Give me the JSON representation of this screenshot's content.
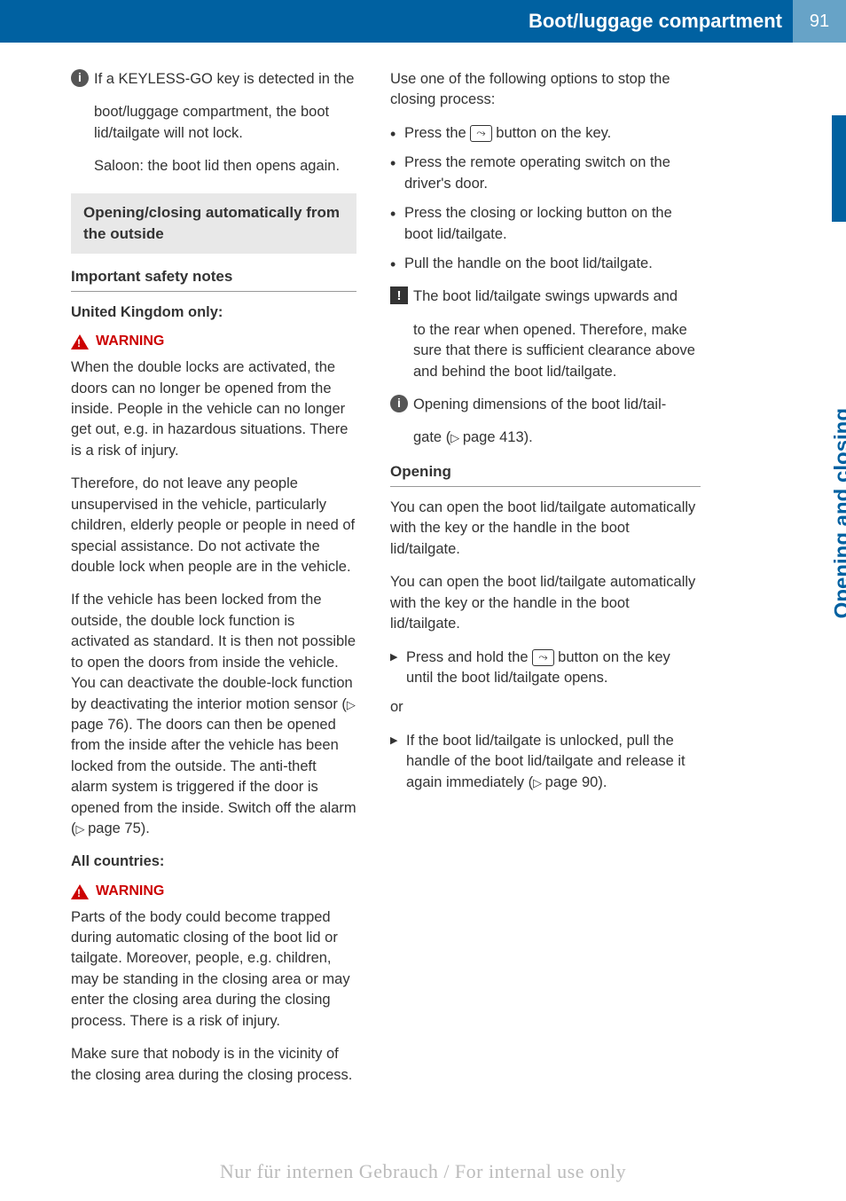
{
  "header": {
    "title": "Boot/luggage compartment",
    "page": "91"
  },
  "side_tab": "Opening and closing",
  "left": {
    "info1_l1": "If a KEYLESS-GO key is detected in the",
    "info1_rest": "boot/luggage compartment, the boot lid/tailgate will not lock.",
    "info1_p2": "Saloon: the boot lid then opens again.",
    "sec_title": "Opening/closing automatically from the outside",
    "h3_safety": "Important safety notes",
    "h4_uk": "United Kingdom only:",
    "warn_label": "WARNING",
    "warn1_p1": "When the double locks are activated, the doors can no longer be opened from the inside. People in the vehicle can no longer get out, e.g. in hazardous situations. There is a risk of injury.",
    "warn1_p2": "Therefore, do not leave any people unsupervised in the vehicle, particularly children, elderly people or people in need of special assistance. Do not activate the double lock when people are in the vehicle.",
    "double_lock_p": "If the vehicle has been locked from the outside, the double lock function is activated as standard. It is then not possible to open the doors from inside the vehicle. You can deactivate the double-lock function by deactivating the interior motion sensor (",
    "ref76": "page 76",
    "double_lock_p2": "). The doors can then be opened from the inside after the vehicle has been locked from the outside. The anti-theft alarm system is triggered if the door is opened from the inside. Switch off the alarm (",
    "ref75": "page 75",
    "double_lock_p3": ").",
    "h4_all": "All countries:",
    "warn2_p1": "Parts of the body could become trapped during automatic closing of the boot lid or tailgate. Moreover, people, e.g. children, may be standing in the closing area or may enter the closing area during the closing process. There is a risk of injury.",
    "warn2_p2": "Make sure that nobody is in the vicinity of the closing area during the closing process."
  },
  "right": {
    "stop_intro": "Use one of the following options to stop the closing process:",
    "b1a": "Press the ",
    "b1b": " button on the key.",
    "b2": "Press the remote operating switch on the driver's door.",
    "b3": "Press the closing or locking button on the boot lid/tailgate.",
    "b4": "Pull the handle on the boot lid/tailgate.",
    "excl_l1": "The boot lid/tailgate swings upwards and",
    "excl_rest": "to the rear when opened. Therefore, make sure that there is sufficient clearance above and behind the boot lid/tailgate.",
    "info2_l1": "Opening dimensions of the boot lid/tail-",
    "info2_rest_a": "gate (",
    "ref413": "page 413",
    "info2_rest_b": ").",
    "h3_open": "Opening",
    "open_p1": "You can open the boot lid/tailgate automatically with the key or the handle in the boot lid/tailgate.",
    "open_p2": "You can open the boot lid/tailgate automatically with the key or the handle in the boot lid/tailgate.",
    "a1a": "Press and hold the ",
    "a1b": " button on the key until the boot lid/tailgate opens.",
    "or": "or",
    "a2a": "If the boot lid/tailgate is unlocked, pull the handle of the boot lid/tailgate and release it again immediately (",
    "ref90": "page 90",
    "a2b": ")."
  },
  "footer": "Nur für internen Gebrauch / For internal use only",
  "icons": {
    "key_glyph": "⤳"
  }
}
